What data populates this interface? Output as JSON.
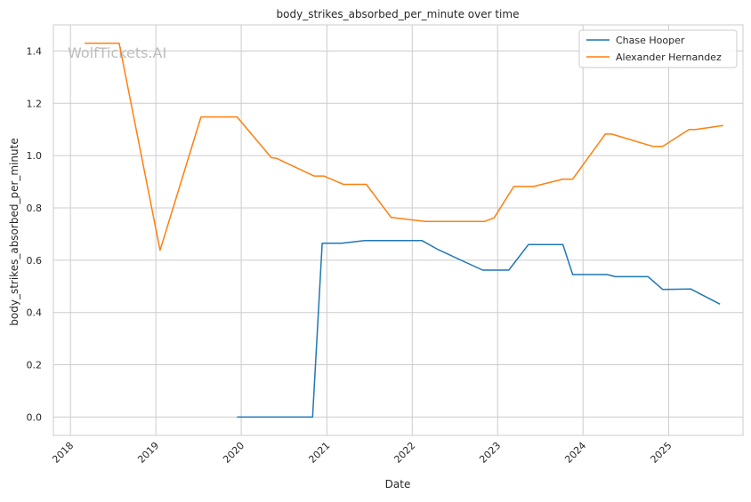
{
  "chart_data": {
    "type": "line",
    "title": "body_strikes_absorbed_per_minute over time",
    "xlabel": "Date",
    "ylabel": "body_strikes_absorbed_per_minute",
    "watermark": "WolfTickets.AI",
    "x_ticks": [
      "2018",
      "2019",
      "2020",
      "2021",
      "2022",
      "2023",
      "2024",
      "2025"
    ],
    "y_ticks": [
      "0.0",
      "0.2",
      "0.4",
      "0.6",
      "0.8",
      "1.0",
      "1.2",
      "1.4"
    ],
    "xlim": [
      "2017-10-20",
      "2025-11-15"
    ],
    "ylim": [
      -0.07,
      1.5
    ],
    "grid": true,
    "legend_position": "top-right",
    "series": [
      {
        "name": "Chase Hooper",
        "color": "#1f77b4",
        "points": [
          [
            "2019-12-14",
            0.0
          ],
          [
            "2020-06-13",
            0.0
          ],
          [
            "2020-11-01",
            0.0
          ],
          [
            "2020-12-12",
            0.665
          ],
          [
            "2021-03-06",
            0.665
          ],
          [
            "2021-06-12",
            0.675
          ],
          [
            "2021-09-18",
            0.675
          ],
          [
            "2022-02-12",
            0.675
          ],
          [
            "2022-04-23",
            0.64
          ],
          [
            "2022-10-29",
            0.562
          ],
          [
            "2023-02-18",
            0.562
          ],
          [
            "2023-05-13",
            0.66
          ],
          [
            "2023-10-07",
            0.66
          ],
          [
            "2023-11-18",
            0.545
          ],
          [
            "2024-04-13",
            0.545
          ],
          [
            "2024-05-18",
            0.537
          ],
          [
            "2024-10-05",
            0.537
          ],
          [
            "2024-12-07",
            0.488
          ],
          [
            "2025-04-05",
            0.49
          ],
          [
            "2025-08-09",
            0.432
          ]
        ]
      },
      {
        "name": "Alexander Hernandez",
        "color": "#ff7f0e",
        "points": [
          [
            "2018-03-03",
            1.43
          ],
          [
            "2018-07-28",
            1.43
          ],
          [
            "2019-01-19",
            0.638
          ],
          [
            "2019-07-13",
            1.148
          ],
          [
            "2019-12-14",
            1.148
          ],
          [
            "2020-05-09",
            0.992
          ],
          [
            "2020-05-30",
            0.99
          ],
          [
            "2020-11-07",
            0.922
          ],
          [
            "2020-12-19",
            0.922
          ],
          [
            "2021-03-13",
            0.89
          ],
          [
            "2021-06-19",
            0.89
          ],
          [
            "2021-10-02",
            0.764
          ],
          [
            "2022-02-26",
            0.748
          ],
          [
            "2022-07-30",
            0.748
          ],
          [
            "2022-11-05",
            0.748
          ],
          [
            "2022-12-17",
            0.762
          ],
          [
            "2023-03-11",
            0.882
          ],
          [
            "2023-06-03",
            0.882
          ],
          [
            "2023-10-07",
            0.91
          ],
          [
            "2023-11-18",
            0.91
          ],
          [
            "2024-04-06",
            1.083
          ],
          [
            "2024-05-04",
            1.082
          ],
          [
            "2024-10-26",
            1.035
          ],
          [
            "2024-12-07",
            1.035
          ],
          [
            "2025-03-29",
            1.1
          ],
          [
            "2025-04-26",
            1.1
          ],
          [
            "2025-08-23",
            1.115
          ]
        ]
      }
    ]
  }
}
